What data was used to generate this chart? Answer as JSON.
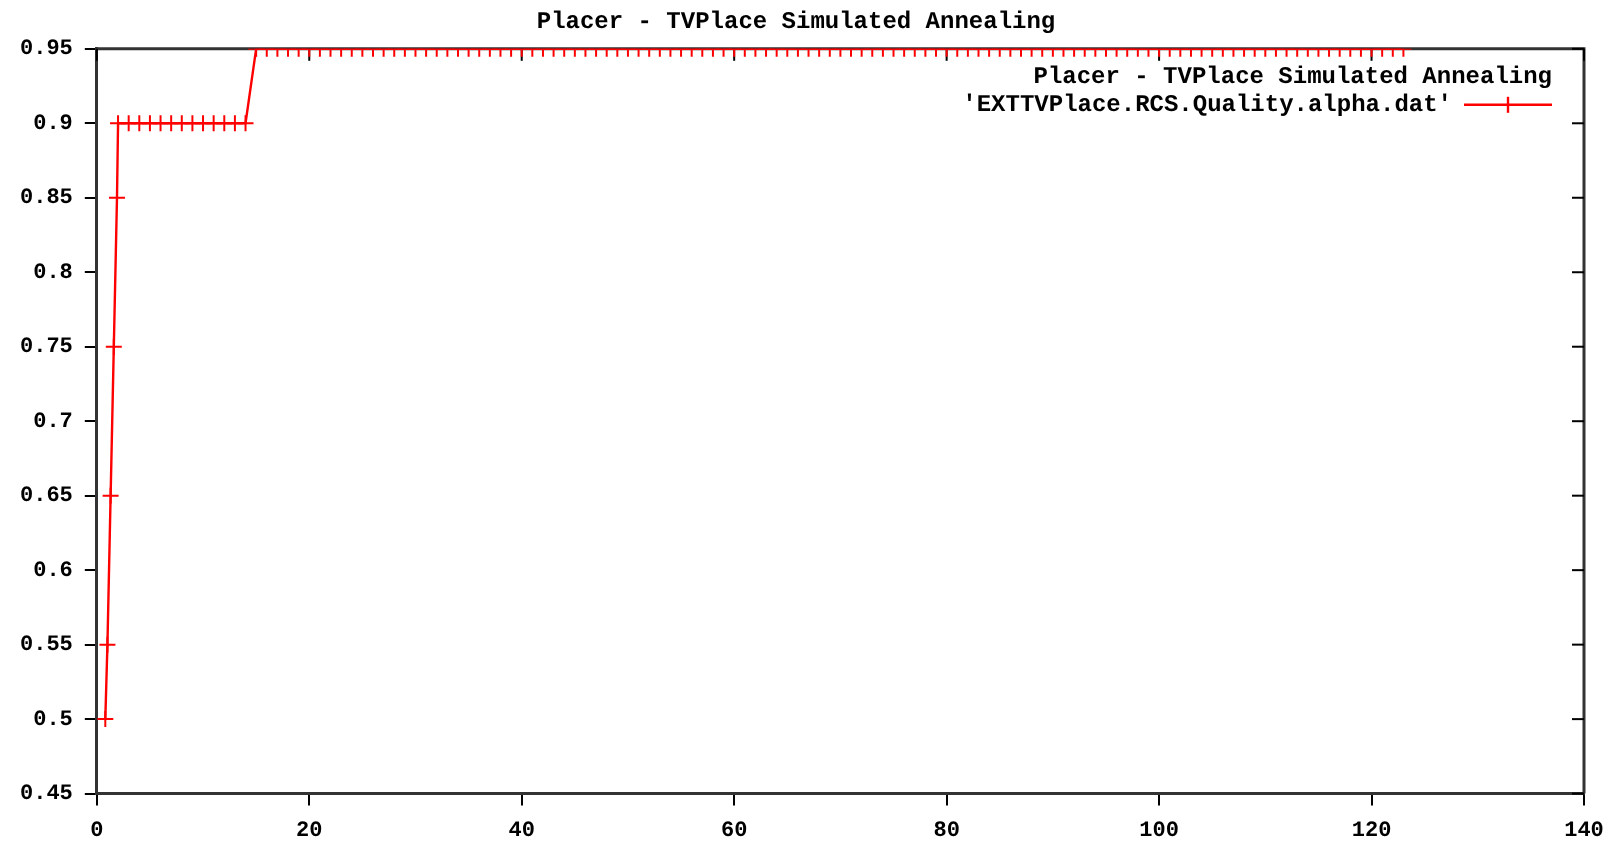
{
  "chart_data": {
    "type": "line",
    "title": "Placer - TVPlace Simulated Annealing",
    "legend_title": "Placer - TVPlace Simulated Annealing",
    "legend": "top right",
    "grid": false,
    "marker": "cross",
    "line_style": "solid",
    "xlim": [
      0,
      140
    ],
    "xticks": [
      0,
      20,
      40,
      60,
      80,
      100,
      120,
      140
    ],
    "ylim": [
      0.45,
      0.95
    ],
    "yticks": [
      0.45,
      0.5,
      0.55,
      0.6,
      0.65,
      0.7,
      0.75,
      0.8,
      0.85,
      0.9,
      0.95
    ],
    "series": [
      {
        "name": "'EXTTVPlace.RCS.Quality.alpha.dat'",
        "color": "#ff0000",
        "x": [
          0.8,
          1,
          1.3,
          1.6,
          1.9,
          2,
          3,
          4,
          5,
          6,
          7,
          8,
          9,
          10,
          11,
          12,
          13,
          14,
          15,
          16,
          17,
          18,
          19,
          20,
          21,
          22,
          23,
          24,
          25,
          26,
          27,
          28,
          29,
          30,
          31,
          32,
          33,
          34,
          35,
          36,
          37,
          38,
          39,
          40,
          41,
          42,
          43,
          44,
          45,
          46,
          47,
          48,
          49,
          50,
          51,
          52,
          53,
          54,
          55,
          56,
          57,
          58,
          59,
          60,
          61,
          62,
          63,
          64,
          65,
          66,
          67,
          68,
          69,
          70,
          71,
          72,
          73,
          74,
          75,
          76,
          77,
          78,
          79,
          80,
          81,
          82,
          83,
          84,
          85,
          86,
          87,
          88,
          89,
          90,
          91,
          92,
          93,
          94,
          95,
          96,
          97,
          98,
          99,
          100,
          101,
          102,
          103,
          104,
          105,
          106,
          107,
          108,
          109,
          110,
          111,
          112,
          113,
          114,
          115,
          116,
          117,
          118,
          119,
          120,
          121,
          122,
          123
        ],
        "values": [
          0.5,
          0.55,
          0.65,
          0.75,
          0.85,
          0.9,
          0.9,
          0.9,
          0.9,
          0.9,
          0.9,
          0.9,
          0.9,
          0.9,
          0.9,
          0.9,
          0.9,
          0.9,
          0.95,
          0.95,
          0.95,
          0.95,
          0.95,
          0.95,
          0.95,
          0.95,
          0.95,
          0.95,
          0.95,
          0.95,
          0.95,
          0.95,
          0.95,
          0.95,
          0.95,
          0.95,
          0.95,
          0.95,
          0.95,
          0.95,
          0.95,
          0.95,
          0.95,
          0.95,
          0.95,
          0.95,
          0.95,
          0.95,
          0.95,
          0.95,
          0.95,
          0.95,
          0.95,
          0.95,
          0.95,
          0.95,
          0.95,
          0.95,
          0.95,
          0.95,
          0.95,
          0.95,
          0.95,
          0.95,
          0.95,
          0.95,
          0.95,
          0.95,
          0.95,
          0.95,
          0.95,
          0.95,
          0.95,
          0.95,
          0.95,
          0.95,
          0.95,
          0.95,
          0.95,
          0.95,
          0.95,
          0.95,
          0.95,
          0.95,
          0.95,
          0.95,
          0.95,
          0.95,
          0.95,
          0.95,
          0.95,
          0.95,
          0.95,
          0.95,
          0.95,
          0.95,
          0.95,
          0.95,
          0.95,
          0.95,
          0.95,
          0.95,
          0.95,
          0.95,
          0.95,
          0.95,
          0.95,
          0.95,
          0.95,
          0.95,
          0.95,
          0.95,
          0.95,
          0.95,
          0.95,
          0.95,
          0.95,
          0.95,
          0.95,
          0.95,
          0.95,
          0.95,
          0.95,
          0.95,
          0.95,
          0.95,
          0.95
        ]
      }
    ]
  }
}
